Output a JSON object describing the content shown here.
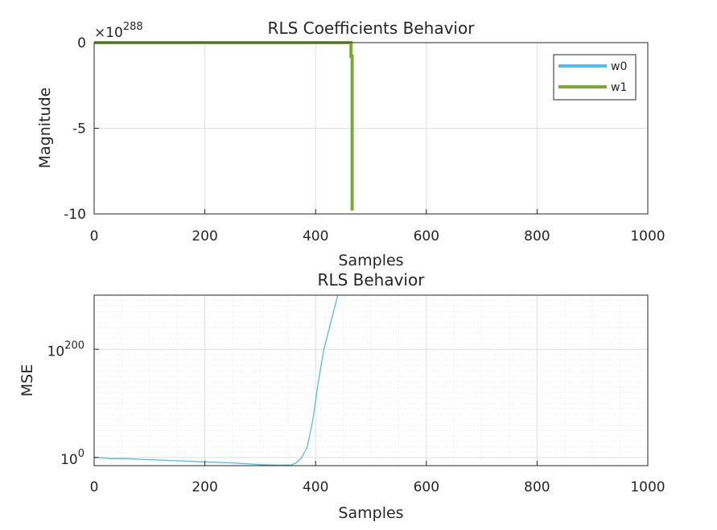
{
  "figure": {
    "colors": {
      "w0": "#4dbeee",
      "w1": "#77ac30",
      "mse": "#4dbeee"
    }
  },
  "chart_data": [
    {
      "type": "line",
      "title": "RLS Coefficients Behavior",
      "xlabel": "Samples",
      "ylabel": "Magnitude",
      "exponent_base": "×10",
      "exponent_power": "288",
      "xlim": [
        0,
        1000
      ],
      "ylim": [
        -10,
        0
      ],
      "xticks": [
        "0",
        "200",
        "400",
        "600",
        "800",
        "1000"
      ],
      "yticks": [
        "0",
        "-5",
        "-10"
      ],
      "grid": true,
      "legend_position": "top-right",
      "series": [
        {
          "name": "w0",
          "x": [
            0,
            466
          ],
          "y": [
            0,
            0
          ]
        },
        {
          "name": "w1",
          "x": [
            0,
            464,
            464,
            466,
            466
          ],
          "y": [
            0,
            0,
            -0.8,
            -0.8,
            -9.8
          ]
        }
      ]
    },
    {
      "type": "line",
      "title": "RLS Behavior",
      "xlabel": "Samples",
      "ylabel": "MSE",
      "yscale": "log",
      "xlim": [
        0,
        1000
      ],
      "ylim_log10": [
        -15,
        300
      ],
      "xticks": [
        "0",
        "200",
        "400",
        "600",
        "800",
        "1000"
      ],
      "yticks": [
        {
          "base": "10",
          "power": "0",
          "log10": 0
        },
        {
          "base": "10",
          "power": "200",
          "log10": 200
        }
      ],
      "grid": true,
      "series": [
        {
          "x": [
            0,
            5,
            10,
            30,
            60,
            100,
            150,
            200,
            250,
            300,
            330,
            355,
            365,
            375,
            385,
            395,
            405,
            415,
            425,
            435,
            440
          ],
          "log10_y": [
            1,
            0,
            0,
            -2,
            -2,
            -4,
            -6,
            -8,
            -10,
            -13,
            -14,
            -14,
            -10,
            0,
            20,
            70,
            140,
            200,
            240,
            280,
            300
          ]
        }
      ]
    }
  ]
}
